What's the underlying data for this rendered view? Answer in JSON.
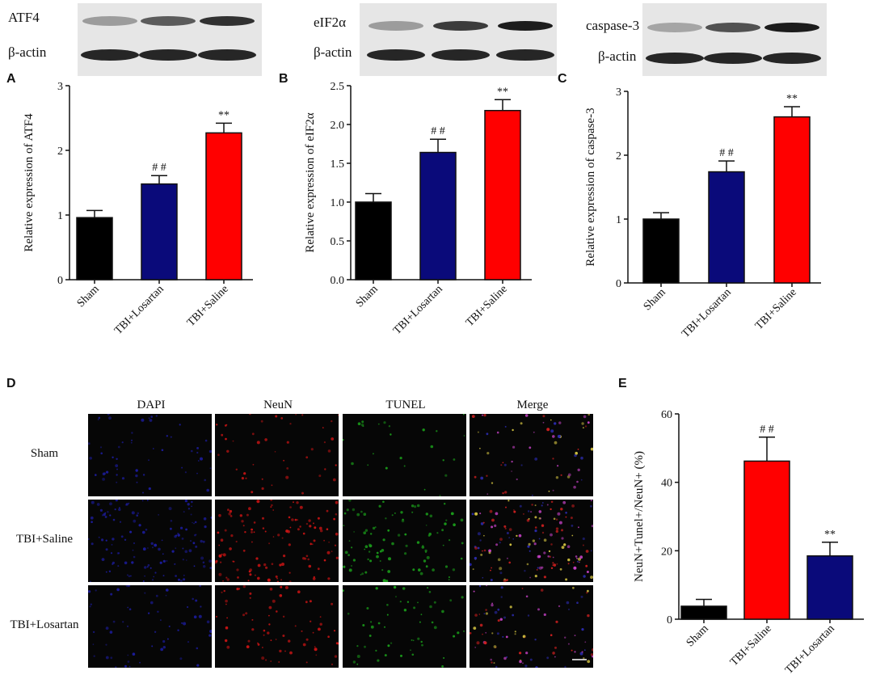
{
  "blots": [
    {
      "target_label": "ATF4",
      "control_label": "β-actin"
    },
    {
      "target_label": "eIF2α",
      "control_label": "β-actin"
    },
    {
      "target_label": "caspase-3",
      "control_label": "β-actin"
    }
  ],
  "microscopy": {
    "panel_letter": "D",
    "columns": [
      "DAPI",
      "NeuN",
      "TUNEL",
      "Merge"
    ],
    "rows": [
      "Sham",
      "TBI+Saline",
      "TBI+Losartan"
    ]
  },
  "chart_data": [
    {
      "panel": "A",
      "type": "bar",
      "categories": [
        "Sham",
        "TBI+Losartan",
        "TBI+Saline"
      ],
      "values": [
        0.96,
        1.48,
        2.27
      ],
      "errors": [
        0.11,
        0.13,
        0.15
      ],
      "colors": [
        "#000000",
        "#0a0a7a",
        "#ff0000"
      ],
      "annotations": [
        "",
        "# #",
        "**"
      ],
      "ylabel": "Relative expression of ATF4",
      "ylim": [
        0,
        3
      ],
      "yticks": [
        0,
        1,
        2,
        3
      ],
      "ytick_labels": [
        "0",
        "1",
        "2",
        "3"
      ]
    },
    {
      "panel": "B",
      "type": "bar",
      "categories": [
        "Sham",
        "TBI+Losartan",
        "TBI+Saline"
      ],
      "values": [
        1.0,
        1.64,
        2.18
      ],
      "errors": [
        0.11,
        0.17,
        0.14
      ],
      "colors": [
        "#000000",
        "#0a0a7a",
        "#ff0000"
      ],
      "annotations": [
        "",
        "# #",
        "**"
      ],
      "ylabel": "Relative expression of eIF2α",
      "ylim": [
        0,
        2.5
      ],
      "yticks": [
        0,
        0.5,
        1.0,
        1.5,
        2.0,
        2.5
      ],
      "ytick_labels": [
        "0.0",
        "0.5",
        "1.0",
        "1.5",
        "2.0",
        "2.5"
      ]
    },
    {
      "panel": "C",
      "type": "bar",
      "categories": [
        "Sham",
        "TBI+Losartan",
        "TBI+Saline"
      ],
      "values": [
        1.0,
        1.74,
        2.6
      ],
      "errors": [
        0.1,
        0.17,
        0.16
      ],
      "colors": [
        "#000000",
        "#0a0a7a",
        "#ff0000"
      ],
      "annotations": [
        "",
        "# #",
        "**"
      ],
      "ylabel": "Relative expression of caspase-3",
      "ylim": [
        0,
        3
      ],
      "yticks": [
        0,
        1,
        2,
        3
      ],
      "ytick_labels": [
        "0",
        "1",
        "2",
        "3"
      ]
    },
    {
      "panel": "E",
      "type": "bar",
      "categories": [
        "Sham",
        "TBI+Saline",
        "TBI+Losartan"
      ],
      "values": [
        3.8,
        46.2,
        18.5
      ],
      "errors": [
        2.0,
        7.0,
        4.0
      ],
      "colors": [
        "#000000",
        "#ff0000",
        "#0a0a7a"
      ],
      "annotations": [
        "",
        "# #",
        "**"
      ],
      "ylabel": "NeuN+Tunel+/NeuN+ (%)",
      "ylim": [
        0,
        60
      ],
      "yticks": [
        0,
        20,
        40,
        60
      ],
      "ytick_labels": [
        "0",
        "20",
        "40",
        "60"
      ]
    }
  ]
}
